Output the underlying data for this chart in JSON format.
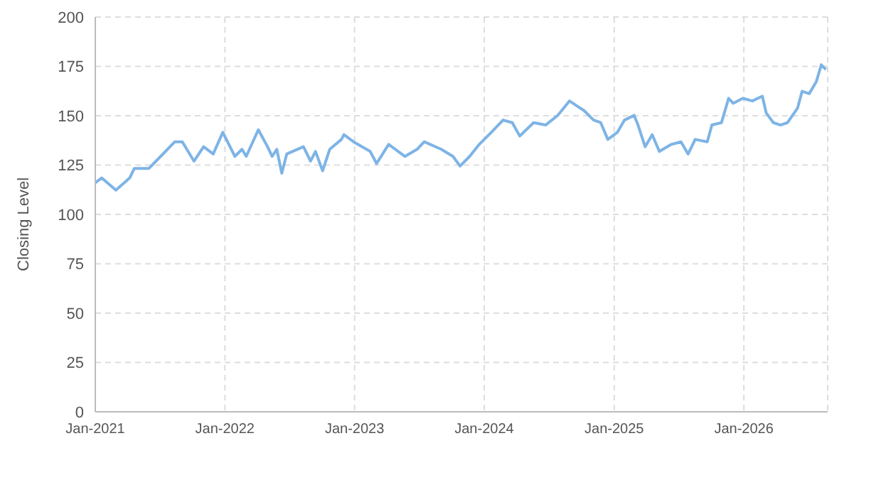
{
  "chart_data": {
    "type": "line",
    "ylabel": "Closing Level",
    "color": "#7eb4e6",
    "grid": true,
    "marker": "none",
    "line_style": "solid",
    "x": [
      "2021-01-01",
      "2021-01-19",
      "2021-02-28",
      "2021-04-08",
      "2021-04-21",
      "2021-06-01",
      "2021-07-04",
      "2021-08-13",
      "2021-09-03",
      "2021-10-06",
      "2021-11-02",
      "2021-11-29",
      "2021-12-26",
      "2022-01-29",
      "2022-02-18",
      "2022-03-02",
      "2022-04-05",
      "2022-05-01",
      "2022-05-14",
      "2022-05-27",
      "2022-06-10",
      "2022-06-24",
      "2022-08-10",
      "2022-08-30",
      "2022-09-13",
      "2022-10-03",
      "2022-10-23",
      "2022-11-25",
      "2022-12-02",
      "2022-12-29",
      "2023-02-14",
      "2023-03-04",
      "2023-04-07",
      "2023-05-23",
      "2023-06-26",
      "2023-07-16",
      "2023-09-02",
      "2023-10-05",
      "2023-10-25",
      "2023-11-21",
      "2023-12-18",
      "2024-01-21",
      "2024-02-23",
      "2024-03-20",
      "2024-04-10",
      "2024-05-19",
      "2024-06-22",
      "2024-07-26",
      "2024-08-28",
      "2024-09-17",
      "2024-10-08",
      "2024-11-04",
      "2024-11-24",
      "2024-12-14",
      "2025-01-10",
      "2025-01-30",
      "2025-02-26",
      "2025-03-09",
      "2025-03-29",
      "2025-04-18",
      "2025-05-08",
      "2025-06-11",
      "2025-07-08",
      "2025-07-28",
      "2025-08-17",
      "2025-09-20",
      "2025-10-03",
      "2025-10-30",
      "2025-11-19",
      "2025-12-02",
      "2025-12-29",
      "2026-01-25",
      "2026-02-22",
      "2026-03-05",
      "2026-03-25",
      "2026-04-14",
      "2026-05-04",
      "2026-06-01",
      "2026-06-14",
      "2026-07-04",
      "2026-07-24",
      "2026-08-07",
      "2026-08-20"
    ],
    "values": [
      116,
      118.5,
      112.3,
      118.5,
      123.3,
      123.3,
      129.4,
      136.8,
      136.8,
      127,
      134.3,
      130.6,
      141.6,
      129.4,
      133,
      129.4,
      142.9,
      134.3,
      129.4,
      133,
      120.9,
      130.6,
      134.3,
      127,
      131.9,
      122.1,
      133,
      138,
      140.4,
      136.8,
      131.9,
      125.8,
      135.5,
      129.4,
      133,
      136.8,
      133,
      129.4,
      124.5,
      129.4,
      135.5,
      141.6,
      147.8,
      146.5,
      139.7,
      146.5,
      145.3,
      150.2,
      157.5,
      155.1,
      152.6,
      147.8,
      146.5,
      138,
      141.6,
      147.8,
      150.2,
      145.3,
      134.3,
      140.4,
      131.9,
      135.5,
      136.8,
      130.6,
      138,
      136.8,
      145.3,
      146.5,
      158.8,
      156.3,
      158.8,
      157.5,
      159.9,
      151.4,
      146.5,
      145.3,
      146.5,
      153.8,
      162.4,
      161.2,
      167.3,
      175.8,
      173.4
    ],
    "xlim": [
      "2021-01-01",
      "2026-08-25"
    ],
    "xticks": [
      {
        "value": "2021-01-01",
        "label": "Jan-2021"
      },
      {
        "value": "2022-01-01",
        "label": "Jan-2022"
      },
      {
        "value": "2023-01-01",
        "label": "Jan-2023"
      },
      {
        "value": "2024-01-01",
        "label": "Jan-2024"
      },
      {
        "value": "2025-01-01",
        "label": "Jan-2025"
      },
      {
        "value": "2026-01-01",
        "label": "Jan-2026"
      }
    ],
    "ylim": [
      0,
      200
    ],
    "yticks": [
      0,
      25,
      50,
      75,
      100,
      125,
      150,
      175,
      200
    ]
  }
}
